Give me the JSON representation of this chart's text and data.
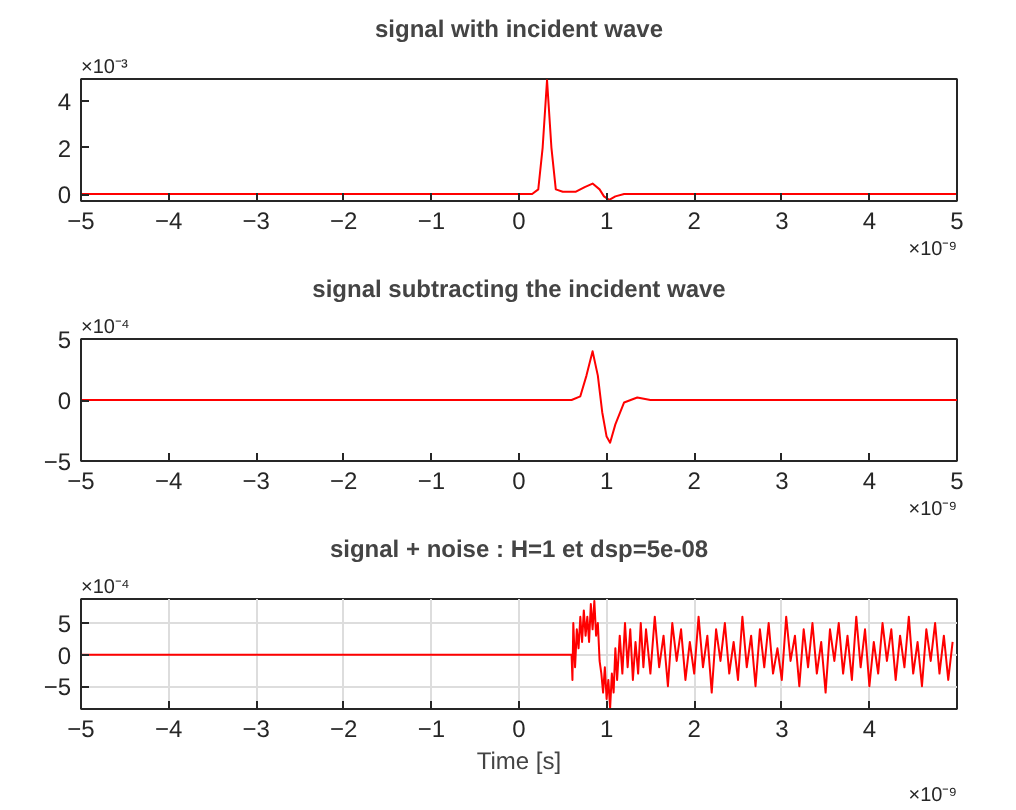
{
  "chart_data": [
    {
      "type": "line",
      "title": "signal with incident wave",
      "xlim": [
        -5,
        5
      ],
      "ylim": [
        -0.3,
        4.95
      ],
      "xticks": [
        -5,
        -4,
        -3,
        -2,
        -1,
        0,
        1,
        2,
        3,
        4,
        5
      ],
      "yticks": [
        0,
        2,
        4
      ],
      "grid": false,
      "annotations": [
        "×10⁻³",
        "×10⁻⁹"
      ],
      "series": [
        {
          "color": "#ff0000",
          "x": [
            -5,
            0.15,
            0.22,
            0.27,
            0.32,
            0.37,
            0.42,
            0.5,
            0.65,
            0.75,
            0.84,
            0.92,
            0.97,
            1.03,
            1.1,
            1.2,
            1.4,
            5
          ],
          "values": [
            0,
            0,
            0.2,
            2,
            4.9,
            2,
            0.2,
            0.1,
            0.1,
            0.3,
            0.45,
            0.2,
            -0.1,
            -0.25,
            -0.1,
            0,
            0,
            0
          ]
        }
      ]
    },
    {
      "type": "line",
      "title": "signal subtracting the incident wave",
      "xlim": [
        -5,
        5
      ],
      "ylim": [
        -5,
        5
      ],
      "xticks": [
        -5,
        -4,
        -3,
        -2,
        -1,
        0,
        1,
        2,
        3,
        4,
        5
      ],
      "yticks": [
        -5,
        0,
        5
      ],
      "grid": false,
      "annotations": [
        "×10⁻⁴",
        "×10⁻⁹"
      ],
      "series": [
        {
          "color": "#ff0000",
          "x": [
            -5,
            0.6,
            0.7,
            0.77,
            0.84,
            0.9,
            0.95,
            1.0,
            1.04,
            1.1,
            1.2,
            1.35,
            1.5,
            1.7,
            5
          ],
          "values": [
            0,
            0,
            0.3,
            2,
            4,
            2,
            -1,
            -3,
            -3.5,
            -2,
            -0.2,
            0.2,
            0,
            0,
            0
          ]
        }
      ]
    },
    {
      "type": "line",
      "title": "signal + noise : H=1 et dsp=5e-08",
      "xlabel": "Time [s]",
      "xlim": [
        -5,
        5
      ],
      "ylim": [
        -8.6,
        8.8
      ],
      "xticks": [
        -5,
        -4,
        -3,
        -2,
        -1,
        0,
        1,
        2,
        3,
        4
      ],
      "yticks": [
        -5,
        0,
        5
      ],
      "grid": true,
      "annotations": [
        "×10⁻⁴",
        "×10⁻⁹"
      ],
      "series": [
        {
          "color": "#ff0000",
          "x": [
            -5,
            0.6,
            0.61,
            0.62,
            0.64,
            0.66,
            0.68,
            0.7,
            0.72,
            0.74,
            0.76,
            0.78,
            0.8,
            0.82,
            0.84,
            0.86,
            0.88,
            0.9,
            0.92,
            0.94,
            0.96,
            0.98,
            1.0,
            1.02,
            1.04,
            1.06,
            1.08,
            1.1,
            1.12,
            1.15,
            1.18,
            1.21,
            1.24,
            1.27,
            1.3,
            1.33,
            1.36,
            1.39,
            1.42,
            1.45,
            1.5,
            1.55,
            1.6,
            1.65,
            1.7,
            1.75,
            1.8,
            1.85,
            1.9,
            1.95,
            2.0,
            2.05,
            2.1,
            2.15,
            2.2,
            2.25,
            2.3,
            2.35,
            2.4,
            2.45,
            2.5,
            2.55,
            2.6,
            2.65,
            2.7,
            2.75,
            2.8,
            2.85,
            2.9,
            2.95,
            3.0,
            3.05,
            3.1,
            3.15,
            3.2,
            3.25,
            3.3,
            3.35,
            3.4,
            3.45,
            3.5,
            3.55,
            3.6,
            3.65,
            3.7,
            3.75,
            3.8,
            3.85,
            3.9,
            3.95,
            4.0,
            4.05,
            4.1,
            4.15,
            4.2,
            4.25,
            4.3,
            4.35,
            4.4,
            4.45,
            4.5,
            4.55,
            4.6,
            4.65,
            4.7,
            4.75,
            4.8,
            4.85,
            4.9,
            4.95
          ],
          "values": [
            0,
            0,
            -4,
            5,
            -2,
            4,
            1,
            6,
            2,
            7,
            3,
            6,
            2,
            8,
            4,
            8.5,
            3,
            5,
            -1,
            -3,
            -6,
            -2,
            -7,
            -4,
            -8.5,
            -3,
            -6,
            1,
            -4,
            3,
            -3,
            5,
            -2,
            4,
            -4,
            2,
            -3,
            5,
            -2,
            4,
            -3,
            6,
            -2,
            3,
            -5,
            5,
            -1,
            4,
            -4,
            2,
            -3,
            6,
            -2,
            3,
            -6,
            4,
            -1,
            5,
            -3,
            2,
            -4,
            6,
            -2,
            3,
            -5,
            4,
            -2,
            5,
            -3,
            1,
            -4,
            6,
            -1,
            3,
            -5,
            4,
            -2,
            5,
            -3,
            2,
            -6,
            4,
            -1,
            5,
            -3,
            3,
            -4,
            6,
            -2,
            4,
            -5,
            2,
            -3,
            5,
            -1,
            4,
            -4,
            3,
            -2,
            6,
            -3,
            2,
            -5,
            4,
            -1,
            5,
            -3,
            3,
            -4,
            2
          ]
        }
      ]
    }
  ]
}
